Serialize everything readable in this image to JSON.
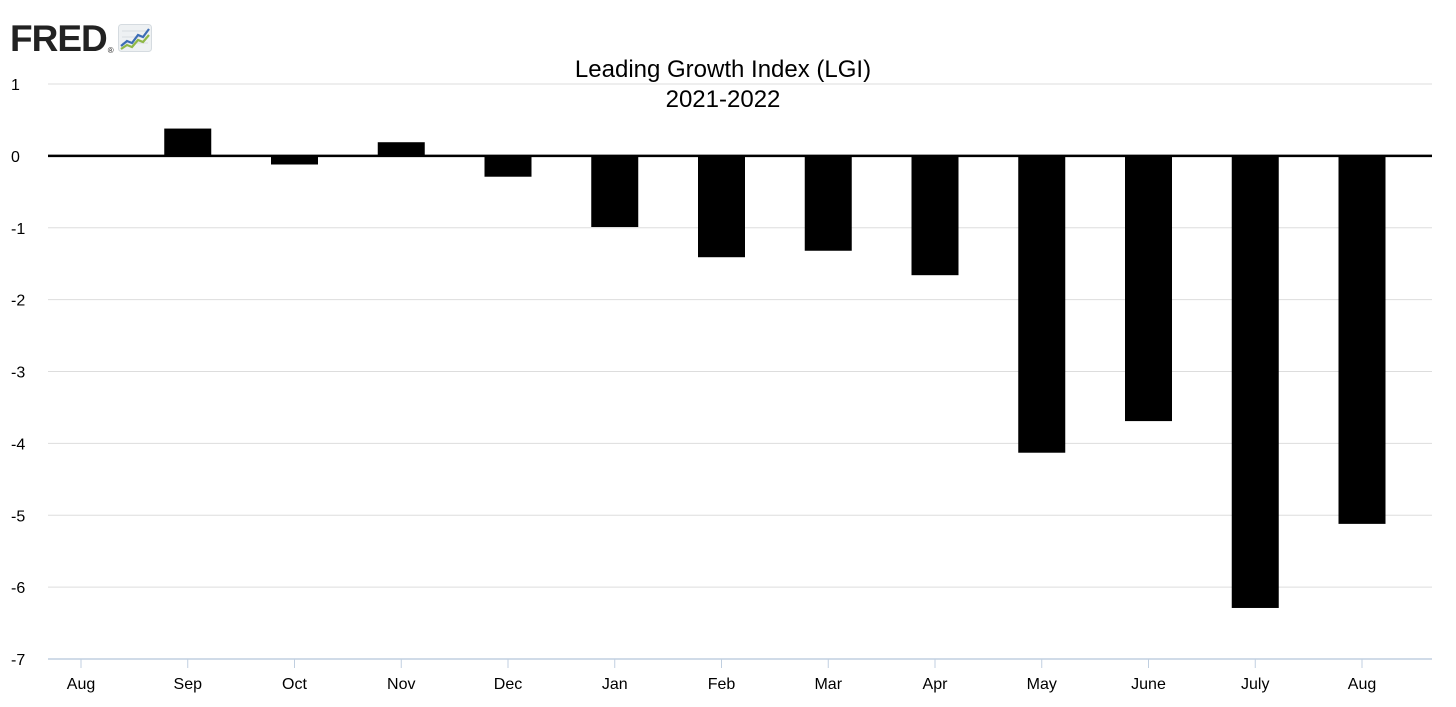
{
  "brand": {
    "name": "FRED",
    "mark": "®",
    "icon": "trend-line-chart-icon"
  },
  "chart_data": {
    "type": "bar",
    "title": "Leading Growth Index (LGI)",
    "subtitle": "2021-2022",
    "categories": [
      "Aug",
      "Sep",
      "Oct",
      "Nov",
      "Dec",
      "Jan",
      "Feb",
      "Mar",
      "Apr",
      "May",
      "June",
      "July",
      "Aug"
    ],
    "values": [
      0,
      0.38,
      -0.12,
      0.19,
      -0.29,
      -0.99,
      -1.41,
      -1.32,
      -1.66,
      -4.13,
      -3.69,
      -6.29,
      -5.12
    ],
    "ylim": [
      -7,
      1
    ],
    "yticks": [
      1,
      0,
      -1,
      -2,
      -3,
      -4,
      -5,
      -6,
      -7
    ],
    "xlabel": "",
    "ylabel": "",
    "grid": true,
    "bar_color": "#000000",
    "grid_color": "#dddddd",
    "axis_color": "#c0cfe0"
  }
}
